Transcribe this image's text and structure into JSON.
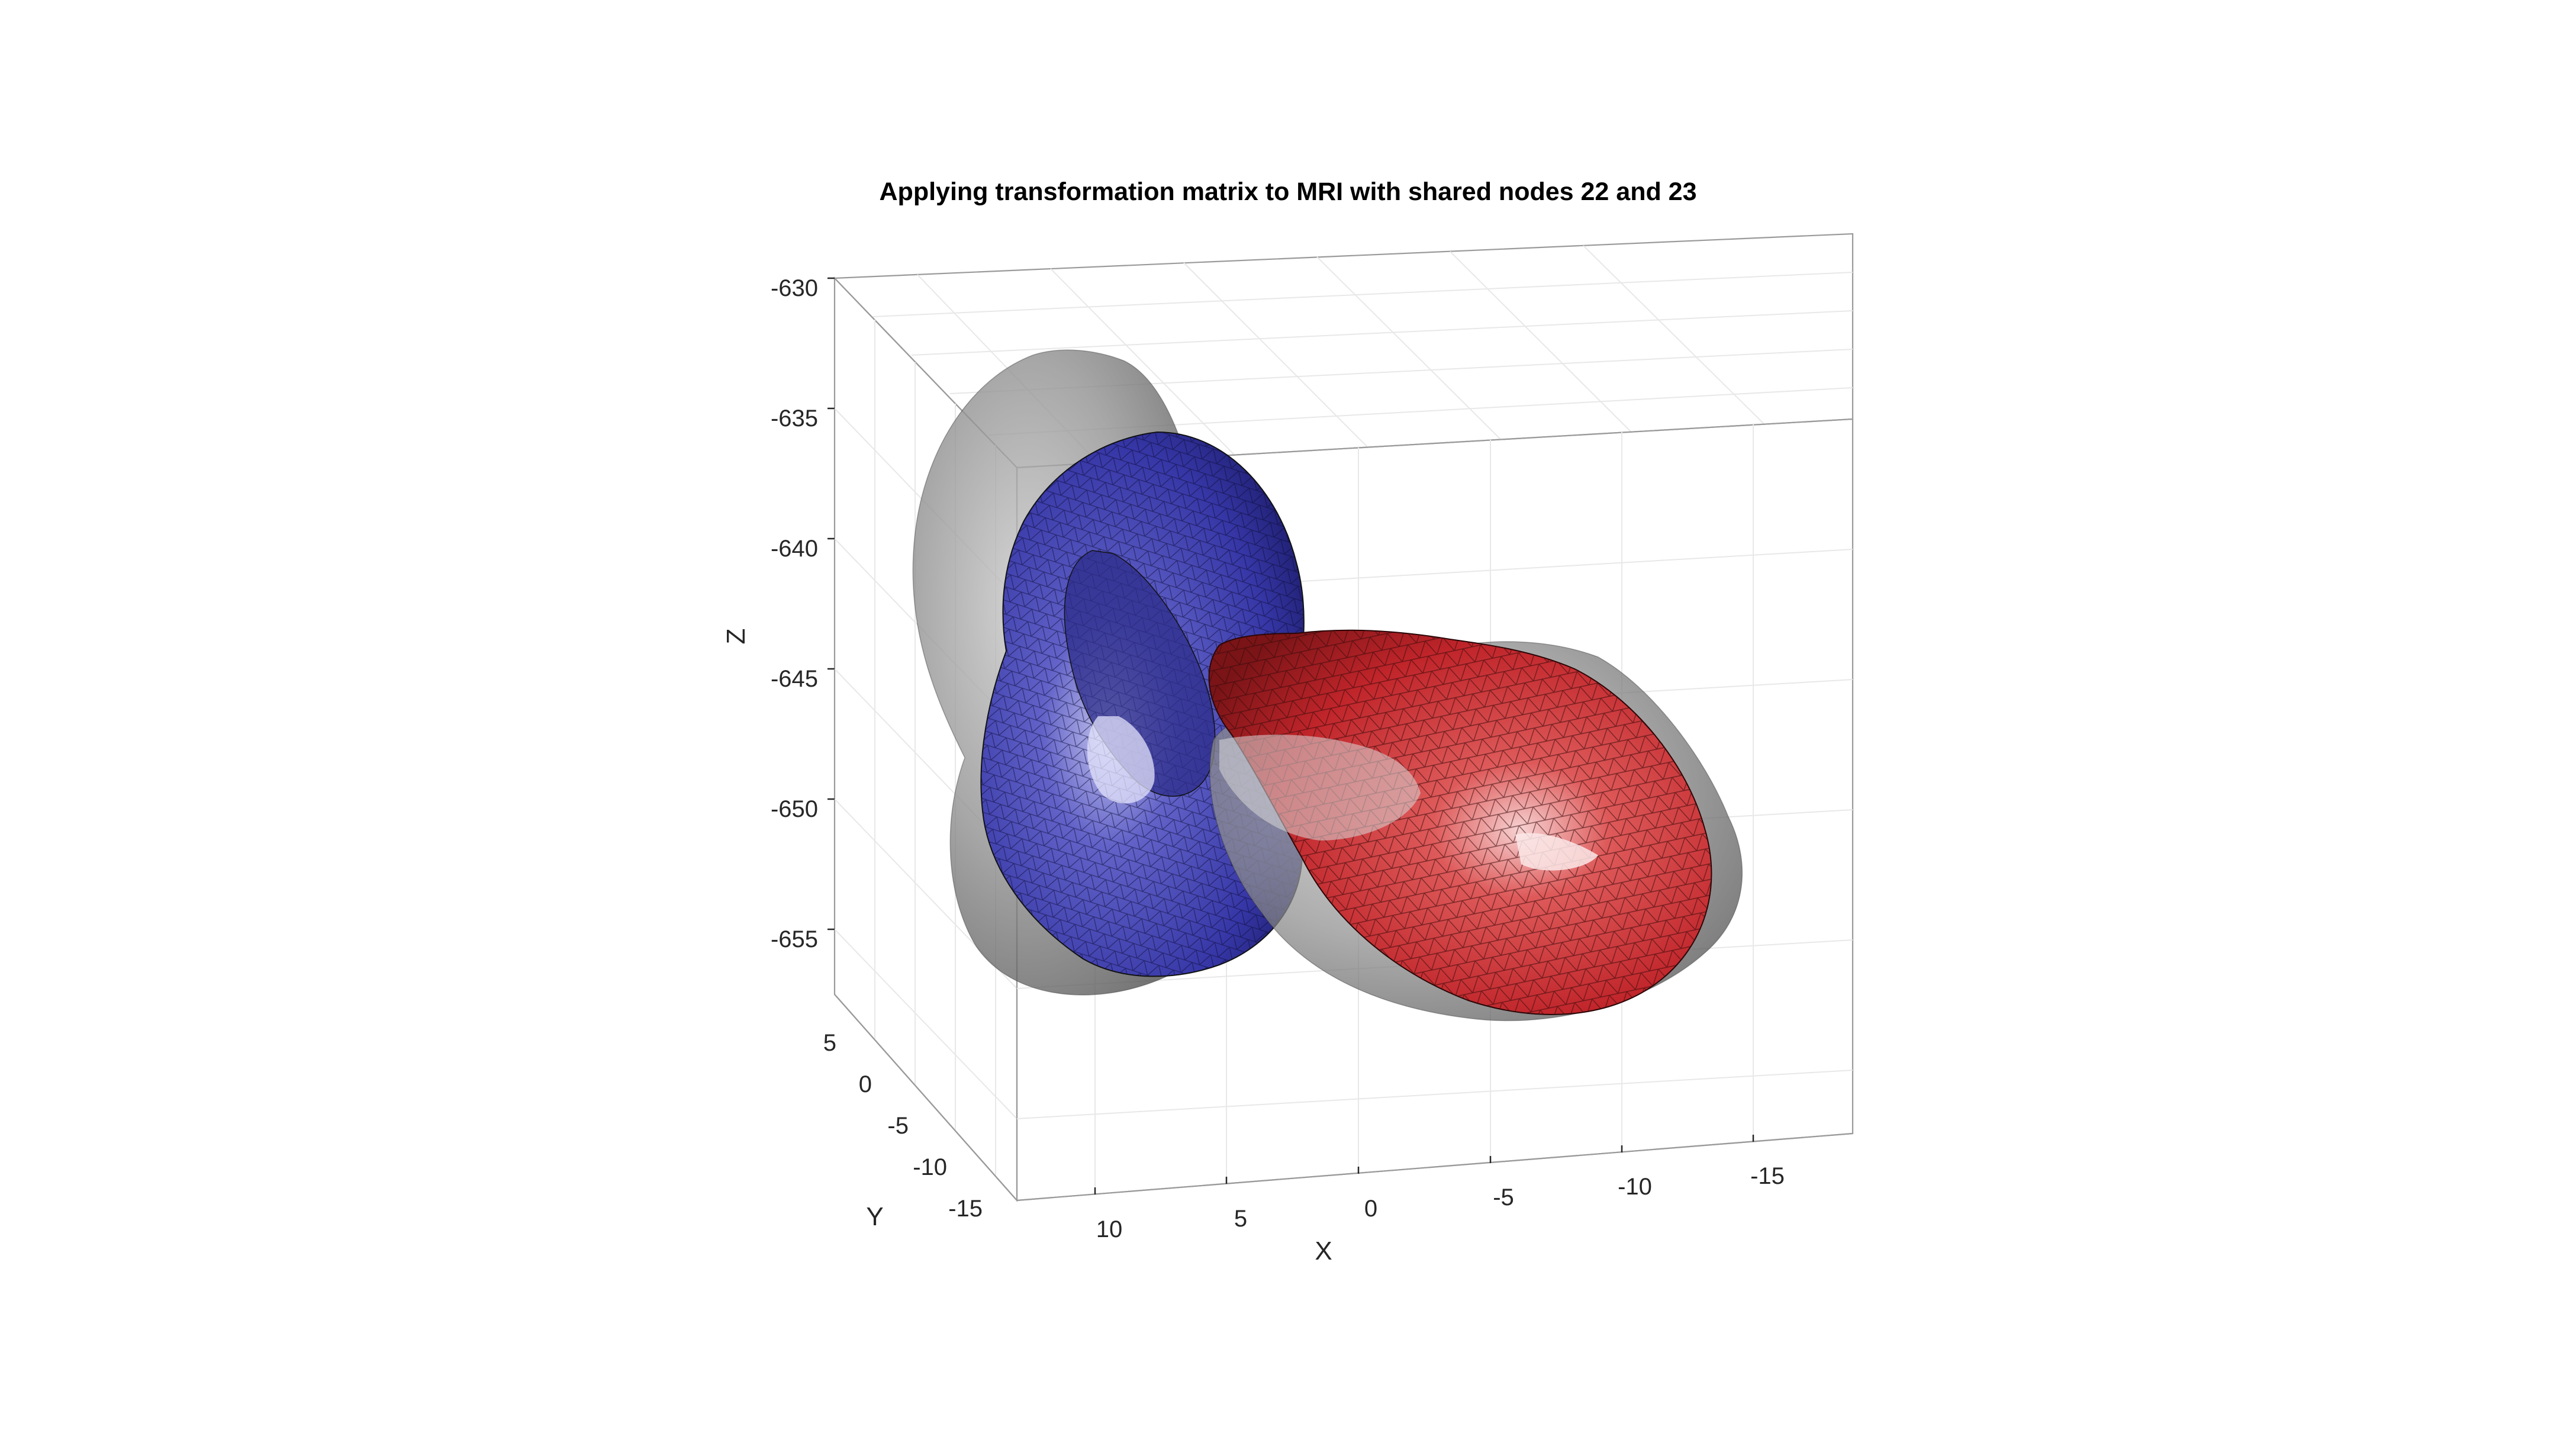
{
  "chart_data": {
    "type": "3d-surface",
    "title": "Applying transformation matrix to MRI with shared nodes 22 and 23",
    "xlabel": "X",
    "ylabel": "Y",
    "zlabel": "Z",
    "xlim": [
      -19,
      14.5
    ],
    "ylim": [
      -17,
      7
    ],
    "zlim": [
      -658,
      -630
    ],
    "x_ticks": [
      "10",
      "5",
      "0",
      "-5",
      "-10",
      "-15"
    ],
    "y_ticks": [
      "5",
      "0",
      "-5",
      "-10",
      "-15"
    ],
    "z_ticks": [
      "-630",
      "-635",
      "-640",
      "-645",
      "-650",
      "-655"
    ],
    "grid": true,
    "surfaces": [
      {
        "label": "gray-mesh-1",
        "color": "#5a5a5a",
        "style": "translucent"
      },
      {
        "label": "gray-mesh-2",
        "color": "#5a5a5a",
        "style": "translucent"
      },
      {
        "label": "blue-mesh",
        "color": "#3b3ba8",
        "style": "wireframe-surface"
      },
      {
        "label": "red-mesh",
        "color": "#c8262b",
        "style": "wireframe-surface"
      }
    ]
  }
}
